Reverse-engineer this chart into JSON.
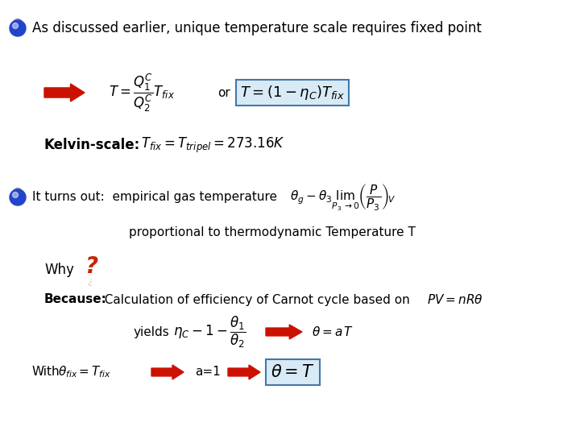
{
  "bg_color": "#ffffff",
  "title_text": "As discussed earlier, unique temperature scale requires fixed point",
  "line1_formula1": "$T = \\dfrac{Q_1^C}{Q_2^C}T_{fix}$",
  "line1_or": "or",
  "line1_formula2": "$T = (1 - \\eta_C )T_{fix}$",
  "line2_bold": "Kelvin-scale:",
  "line2_formula": "$T_{fix} =T_{tripel}=273.16K$",
  "line3_text": "It turns out:  empirical gas temperature",
  "line3_formula": "$\\theta_g - \\theta_3 \\lim_{P_3 \\to 0}\\left(\\dfrac{P}{P_3}\\right)_{\\!V}$",
  "line4_text": "proportional to thermodynamic Temperature T",
  "line5_text": "Why",
  "line6_bold": "Because:",
  "line6_text": "  Calculation of efficiency of Carnot cycle based on",
  "line6_formula": "$PV = nR\\theta$",
  "line7_text": "yields",
  "line7_formula": "$\\eta_C -1 - \\dfrac{\\theta_1}{\\theta_2}$",
  "line7_result": "$\\theta = a\\,T$",
  "line8_left_math": "$\\theta_{fix} = T_{fix}$",
  "line8_mid": "a=1",
  "line8_box": "$\\theta = T$",
  "bullet_blue": "#2244cc",
  "bullet_gray": "#999999",
  "arrow_red": "#cc1100",
  "box_border": "#4477aa",
  "box_fill": "#d8eaf5",
  "font_size_title": 12,
  "font_size_body": 11,
  "font_size_formula": 11,
  "font_size_box": 14
}
